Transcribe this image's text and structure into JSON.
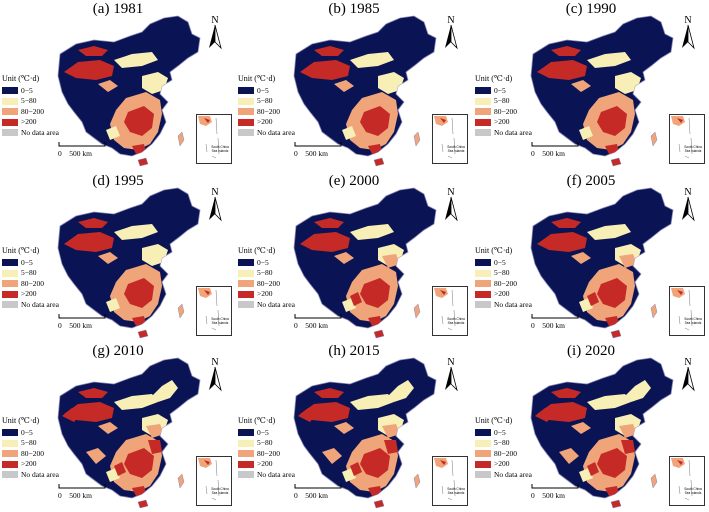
{
  "figure": {
    "legend": {
      "unit": "Unit (℃·d)",
      "items": [
        {
          "label": "0−5",
          "color": "#0a1454"
        },
        {
          "label": "5−80",
          "color": "#f8efb6"
        },
        {
          "label": "80−200",
          "color": "#f0a47a"
        },
        {
          "label": ">200",
          "color": "#c62a26"
        },
        {
          "label": "No data area",
          "color": "#c8c8c8"
        }
      ]
    },
    "scale_label": "0    500 km",
    "north_label": "N",
    "inset_text": [
      "South China",
      "Sea Islands"
    ],
    "panels": [
      {
        "title": "(a) 1981",
        "level": 1
      },
      {
        "title": "(b) 1985",
        "level": 1
      },
      {
        "title": "(c) 1990",
        "level": 1
      },
      {
        "title": "(d) 1995",
        "level": 1
      },
      {
        "title": "(e) 2000",
        "level": 2
      },
      {
        "title": "(f) 2005",
        "level": 2
      },
      {
        "title": "(g) 2010",
        "level": 3
      },
      {
        "title": "(h) 2015",
        "level": 3
      },
      {
        "title": "(i) 2020",
        "level": 3
      }
    ]
  }
}
